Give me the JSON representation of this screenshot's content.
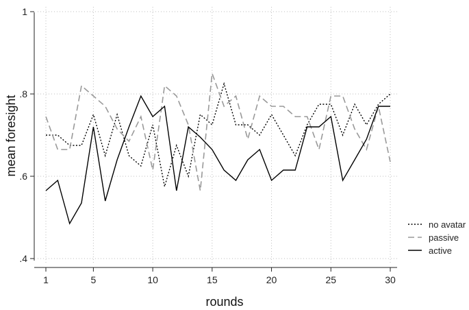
{
  "chart_data": {
    "type": "line",
    "title": "",
    "xlabel": "rounds",
    "ylabel": "mean foresight",
    "xlim": [
      1,
      30
    ],
    "ylim": [
      0.4,
      1.0
    ],
    "x_ticks": [
      1,
      5,
      10,
      15,
      20,
      25,
      30
    ],
    "x_tick_labels": [
      "1",
      "5",
      "10",
      "15",
      "20",
      "25",
      "30"
    ],
    "y_ticks": [
      0.4,
      0.6,
      0.8,
      1.0
    ],
    "y_tick_labels": [
      ".4",
      ".6",
      ".8",
      "1"
    ],
    "grid": true,
    "legend": "right",
    "x": [
      1,
      2,
      3,
      4,
      5,
      6,
      7,
      8,
      9,
      10,
      11,
      12,
      13,
      14,
      15,
      16,
      17,
      18,
      19,
      20,
      21,
      22,
      23,
      24,
      25,
      26,
      27,
      28,
      29,
      30
    ],
    "series": [
      {
        "name": "no avatar",
        "style": "dotted",
        "color": "#000000",
        "values": [
          0.7,
          0.7,
          0.675,
          0.675,
          0.75,
          0.65,
          0.75,
          0.65,
          0.625,
          0.725,
          0.575,
          0.675,
          0.6,
          0.75,
          0.725,
          0.825,
          0.725,
          0.725,
          0.7,
          0.75,
          0.7,
          0.65,
          0.725,
          0.775,
          0.775,
          0.7,
          0.775,
          0.725,
          0.775,
          0.8
        ]
      },
      {
        "name": "passive",
        "style": "dashed",
        "color": "#999999",
        "values": [
          0.745,
          0.665,
          0.665,
          0.82,
          0.795,
          0.77,
          0.715,
          0.685,
          0.745,
          0.615,
          0.82,
          0.795,
          0.725,
          0.565,
          0.85,
          0.77,
          0.795,
          0.69,
          0.795,
          0.77,
          0.77,
          0.745,
          0.745,
          0.665,
          0.795,
          0.795,
          0.715,
          0.665,
          0.77,
          0.635
        ]
      },
      {
        "name": "active",
        "style": "solid",
        "color": "#000000",
        "values": [
          0.565,
          0.59,
          0.485,
          0.535,
          0.72,
          0.54,
          0.64,
          0.72,
          0.795,
          0.745,
          0.77,
          0.565,
          0.72,
          0.695,
          0.665,
          0.615,
          0.59,
          0.64,
          0.665,
          0.59,
          0.615,
          0.615,
          0.72,
          0.72,
          0.745,
          0.59,
          0.64,
          0.69,
          0.77,
          0.77
        ]
      }
    ]
  }
}
